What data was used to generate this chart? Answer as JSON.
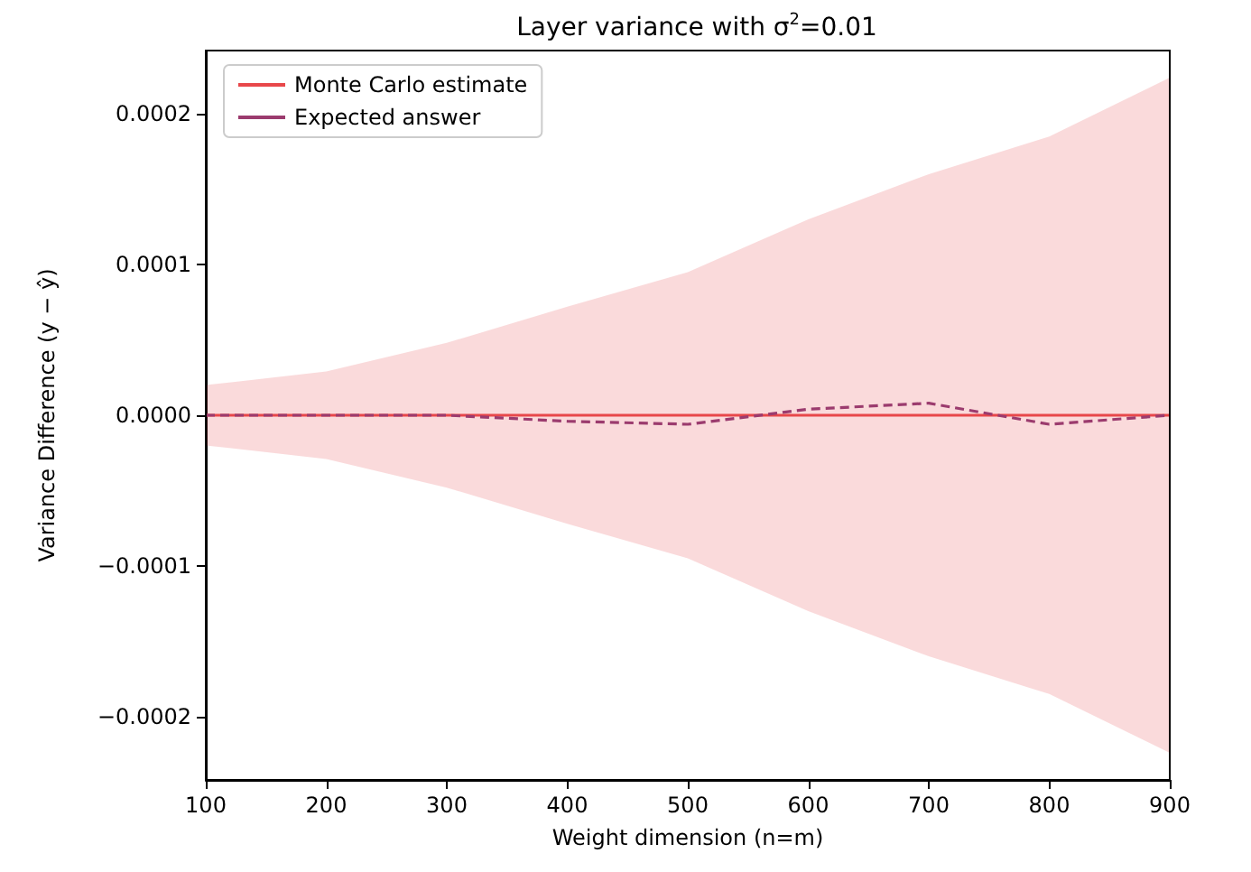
{
  "chart_data": {
    "type": "line",
    "title": "Layer variance with σ$^{2}$=0.01",
    "xlabel": "Weight dimension (n=m)",
    "ylabel": "Variance Difference (y − ŷ)",
    "x": [
      100,
      200,
      300,
      400,
      500,
      600,
      700,
      800,
      900
    ],
    "series": [
      {
        "name": "Monte Carlo estimate",
        "color": "#e8474a",
        "values": [
          0,
          0,
          0,
          0,
          0,
          0,
          0,
          0,
          0
        ],
        "lower": [
          -2e-05,
          -2.9e-05,
          -4.8e-05,
          -7.2e-05,
          -9.5e-05,
          -0.00013,
          -0.00016,
          -0.000185,
          -0.000224
        ],
        "upper": [
          2e-05,
          2.9e-05,
          4.8e-05,
          7.2e-05,
          9.5e-05,
          0.00013,
          0.00016,
          0.000185,
          0.000224
        ],
        "line_style": "solid"
      },
      {
        "name": "Expected answer",
        "color": "#9b3b6e",
        "values": [
          0,
          0,
          0,
          -4e-06,
          -6e-06,
          4e-06,
          8e-06,
          -6e-06,
          0
        ],
        "line_style": "dashed"
      }
    ],
    "xlim": [
      100,
      900
    ],
    "xticks": [
      100,
      200,
      300,
      400,
      500,
      600,
      700,
      800,
      900
    ],
    "ylim": [
      -0.000242,
      0.000242
    ],
    "yticks": [
      {
        "value": -0.0002,
        "label": "−0.0002"
      },
      {
        "value": -0.0001,
        "label": "−0.0001"
      },
      {
        "value": 0,
        "label": "0.0000"
      },
      {
        "value": 0.0001,
        "label": "0.0001"
      },
      {
        "value": 0.0002,
        "label": "0.0002"
      }
    ],
    "grid": false,
    "legend": "top left",
    "marker": "none"
  }
}
